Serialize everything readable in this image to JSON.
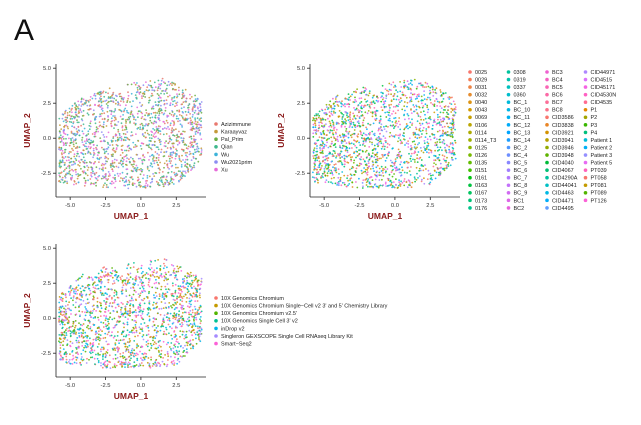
{
  "panel_label": "A",
  "chart_data": [
    {
      "type": "scatter",
      "xlabel": "UMAP_1",
      "ylabel": "UMAP_2",
      "xlim": [
        -6.0,
        4.6
      ],
      "ylim": [
        -4.2,
        5.3
      ],
      "xticks": [
        -5.0,
        -2.5,
        0.0,
        2.5
      ],
      "yticks": [
        -2.5,
        0.0,
        2.5,
        5.0
      ],
      "legend_position": "right",
      "grid": false,
      "legend": [
        {
          "name": "Azizimmune",
          "color": "#E8796F"
        },
        {
          "name": "Karaayvaz",
          "color": "#C49A3A"
        },
        {
          "name": "Pal_Prim",
          "color": "#6BAE45"
        },
        {
          "name": "Qian",
          "color": "#3FB88D"
        },
        {
          "name": "Wu",
          "color": "#3DB3D9"
        },
        {
          "name": "Wu2021prim",
          "color": "#8C8CF2"
        },
        {
          "name": "Xu",
          "color": "#E66BD9"
        }
      ]
    },
    {
      "type": "scatter",
      "xlabel": "UMAP_1",
      "ylabel": "UMAP_2",
      "xlim": [
        -6.0,
        4.6
      ],
      "ylim": [
        -4.2,
        5.3
      ],
      "xticks": [
        -5.0,
        -2.5,
        0.0,
        2.5
      ],
      "yticks": [
        -2.5,
        0.0,
        2.5,
        5.0
      ],
      "legend_position": "right",
      "grid": false,
      "legend": [
        {
          "name": "0025",
          "color": "#F8766D"
        },
        {
          "name": "0029",
          "color": "#F47D57"
        },
        {
          "name": "0031",
          "color": "#EE8544"
        },
        {
          "name": "0032",
          "color": "#E68C2E"
        },
        {
          "name": "0040",
          "color": "#DD9313"
        },
        {
          "name": "0043",
          "color": "#D39A00"
        },
        {
          "name": "0069",
          "color": "#C8A000"
        },
        {
          "name": "0106",
          "color": "#BBA600"
        },
        {
          "name": "0114",
          "color": "#ADAB00"
        },
        {
          "name": "0114_T3",
          "color": "#9EB000"
        },
        {
          "name": "0125",
          "color": "#8DB500"
        },
        {
          "name": "0126",
          "color": "#79B900"
        },
        {
          "name": "0135",
          "color": "#62BD00"
        },
        {
          "name": "0151",
          "color": "#43C000"
        },
        {
          "name": "0161",
          "color": "#00C212"
        },
        {
          "name": "0163",
          "color": "#00C341"
        },
        {
          "name": "0167",
          "color": "#00C45F"
        },
        {
          "name": "0173",
          "color": "#00C477"
        },
        {
          "name": "0176",
          "color": "#00C48B"
        },
        {
          "name": "0308",
          "color": "#00C39D"
        },
        {
          "name": "0319",
          "color": "#00C2AE"
        },
        {
          "name": "0337",
          "color": "#00C0BE"
        },
        {
          "name": "0360",
          "color": "#00BDCC"
        },
        {
          "name": "BC_1",
          "color": "#00BADA"
        },
        {
          "name": "BC_10",
          "color": "#00B6E6"
        },
        {
          "name": "BC_11",
          "color": "#00B1F0"
        },
        {
          "name": "BC_12",
          "color": "#00ABF9"
        },
        {
          "name": "BC_13",
          "color": "#00A5FF"
        },
        {
          "name": "BC_14",
          "color": "#1A9EFF"
        },
        {
          "name": "BC_2",
          "color": "#4D97FF"
        },
        {
          "name": "BC_4",
          "color": "#6E8FFF"
        },
        {
          "name": "BC_5",
          "color": "#8987FF"
        },
        {
          "name": "BC_6",
          "color": "#A07FFF"
        },
        {
          "name": "BC_7",
          "color": "#B378FF"
        },
        {
          "name": "BC_8",
          "color": "#C371FA"
        },
        {
          "name": "BC_9",
          "color": "#D16BF2"
        },
        {
          "name": "BC1",
          "color": "#DD66E8"
        },
        {
          "name": "BC2",
          "color": "#E762DC"
        },
        {
          "name": "BC3",
          "color": "#EF61D0"
        },
        {
          "name": "BC4",
          "color": "#F562C2"
        },
        {
          "name": "BC5",
          "color": "#F965B4"
        },
        {
          "name": "BC6",
          "color": "#FB69A6"
        },
        {
          "name": "BC7",
          "color": "#FC6E98"
        },
        {
          "name": "BC8",
          "color": "#FB728A"
        },
        {
          "name": "CID3586",
          "color": "#F8766D"
        },
        {
          "name": "CID3838",
          "color": "#E88526"
        },
        {
          "name": "CID3921",
          "color": "#D39200"
        },
        {
          "name": "CID3941",
          "color": "#B79F00"
        },
        {
          "name": "CID3946",
          "color": "#93AA00"
        },
        {
          "name": "CID3948",
          "color": "#5EB300"
        },
        {
          "name": "CID4040",
          "color": "#00BA38"
        },
        {
          "name": "CID4067",
          "color": "#00BF74"
        },
        {
          "name": "CID4290A",
          "color": "#00C19F"
        },
        {
          "name": "CID44041",
          "color": "#00BFC4"
        },
        {
          "name": "CID4463",
          "color": "#00B9E3"
        },
        {
          "name": "CID4471",
          "color": "#00ADFA"
        },
        {
          "name": "CID4495",
          "color": "#619CFF"
        },
        {
          "name": "CID44971",
          "color": "#AE87FF"
        },
        {
          "name": "CID4515",
          "color": "#DB72FB"
        },
        {
          "name": "CID45171",
          "color": "#F564E3"
        },
        {
          "name": "CID4530N",
          "color": "#FF61C3"
        },
        {
          "name": "CID4535",
          "color": "#FF6C91"
        },
        {
          "name": "P1",
          "color": "#E58700"
        },
        {
          "name": "P2",
          "color": "#A3A500"
        },
        {
          "name": "P3",
          "color": "#39B600"
        },
        {
          "name": "P4",
          "color": "#00BF7D"
        },
        {
          "name": "Patient 1",
          "color": "#00BCD8"
        },
        {
          "name": "Patient 2",
          "color": "#00B0F6"
        },
        {
          "name": "Patient 3",
          "color": "#9590FF"
        },
        {
          "name": "Patient 5",
          "color": "#E76BF3"
        },
        {
          "name": "PT039",
          "color": "#FF62BC"
        },
        {
          "name": "PT058",
          "color": "#F8766D"
        },
        {
          "name": "PT081",
          "color": "#C49A00"
        },
        {
          "name": "PT089",
          "color": "#53B400"
        },
        {
          "name": "PT126",
          "color": "#FB61D7"
        }
      ]
    },
    {
      "type": "scatter",
      "xlabel": "UMAP_1",
      "ylabel": "UMAP_2",
      "xlim": [
        -6.0,
        4.6
      ],
      "ylim": [
        -4.2,
        5.3
      ],
      "xticks": [
        -5.0,
        -2.5,
        0.0,
        2.5
      ],
      "yticks": [
        -2.5,
        0.0,
        2.5,
        5.0
      ],
      "legend_position": "right",
      "grid": false,
      "legend": [
        {
          "name": "10X Genomics Chromium",
          "color": "#F8766D"
        },
        {
          "name": "10X Genomics Chromium Single−Cell v2 3' and 5' Chemistry Library",
          "color": "#C49A00"
        },
        {
          "name": "10X Genomics Chromium v2.5'",
          "color": "#53B400"
        },
        {
          "name": "10X Genomics Single Cell 3' v2",
          "color": "#00C094"
        },
        {
          "name": "inDrop v2",
          "color": "#00B6EB"
        },
        {
          "name": "Singleron GEXSCOPE Single Cell RNAseq Library Kit",
          "color": "#A58AFF"
        },
        {
          "name": "Smart−Seq2",
          "color": "#FB61D7"
        }
      ]
    }
  ]
}
